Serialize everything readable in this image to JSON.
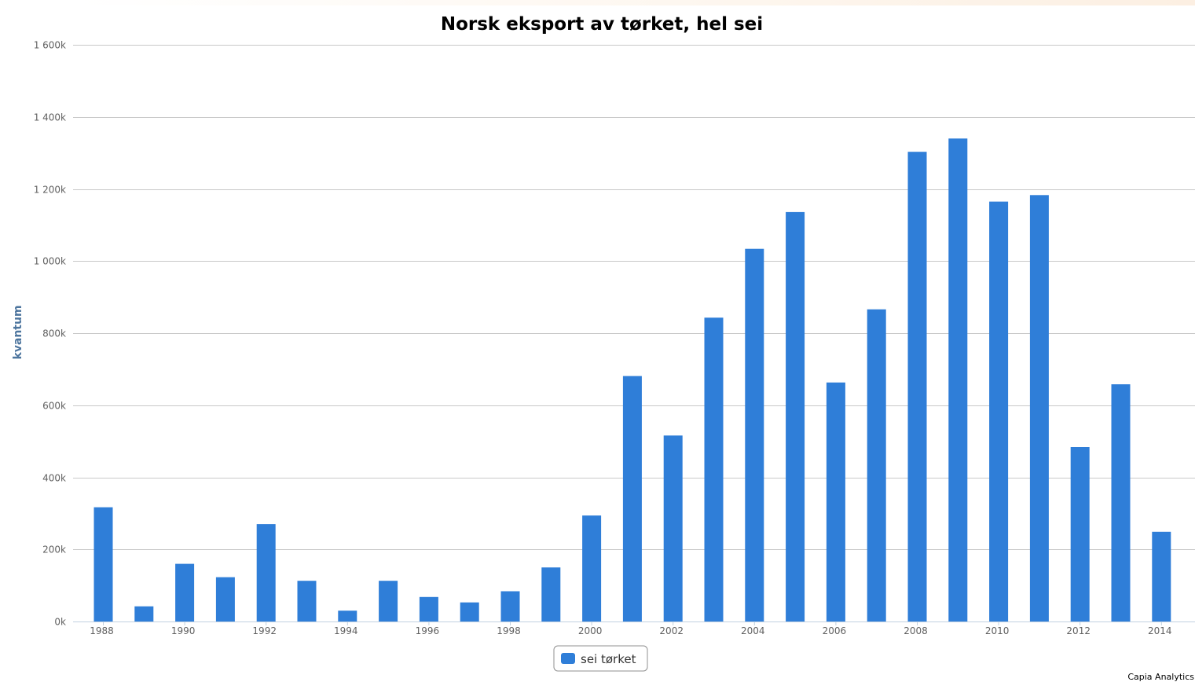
{
  "chart_data": {
    "type": "bar",
    "title": "Norsk eksport av tørket, hel sei",
    "ylabel": "kvantum",
    "xlabel": "",
    "ylim": [
      0,
      1600000
    ],
    "yticks": [
      {
        "value": 0,
        "label": "0k"
      },
      {
        "value": 200000,
        "label": "200k"
      },
      {
        "value": 400000,
        "label": "400k"
      },
      {
        "value": 600000,
        "label": "600k"
      },
      {
        "value": 800000,
        "label": "800k"
      },
      {
        "value": 1000000,
        "label": "1 000k"
      },
      {
        "value": 1200000,
        "label": "1 200k"
      },
      {
        "value": 1400000,
        "label": "1 400k"
      },
      {
        "value": 1600000,
        "label": "1 600k"
      }
    ],
    "categories": [
      "1988",
      "1989",
      "1990",
      "1991",
      "1992",
      "1993",
      "1994",
      "1995",
      "1996",
      "1997",
      "1998",
      "1999",
      "2000",
      "2001",
      "2002",
      "2003",
      "2004",
      "2005",
      "2006",
      "2007",
      "2008",
      "2009",
      "2010",
      "2011",
      "2012",
      "2013",
      "2014"
    ],
    "xtick_labels": [
      "1988",
      "1990",
      "1992",
      "1994",
      "1996",
      "1998",
      "2000",
      "2002",
      "2004",
      "2006",
      "2008",
      "2010",
      "2012",
      "2014"
    ],
    "series": [
      {
        "name": "sei tørket",
        "color": "#2f7ed8",
        "values": [
          317000,
          42000,
          160000,
          123000,
          270000,
          113000,
          30000,
          113000,
          68000,
          53000,
          84000,
          150000,
          294000,
          681000,
          516000,
          843000,
          1034000,
          1136000,
          663000,
          866000,
          1303000,
          1340000,
          1165000,
          1183000,
          484000,
          658000,
          249000
        ]
      }
    ],
    "grid": true,
    "legend": "bottom-center"
  },
  "credits": "Capia Analytics"
}
